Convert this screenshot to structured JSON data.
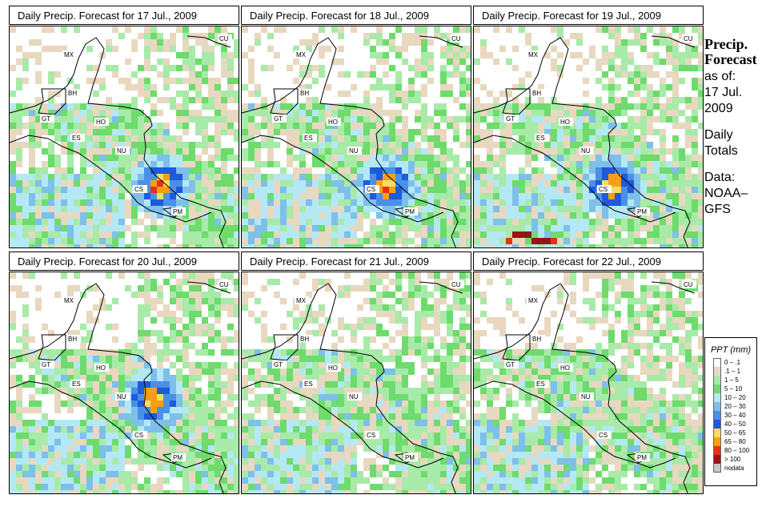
{
  "panels": [
    {
      "title": "Daily Precip. Forecast for  17 Jul., 2009"
    },
    {
      "title": "Daily Precip. Forecast for  18 Jul., 2009"
    },
    {
      "title": "Daily Precip. Forecast for  19 Jul., 2009"
    },
    {
      "title": "Daily Precip. Forecast for  20 Jul., 2009"
    },
    {
      "title": "Daily Precip. Forecast for  21 Jul., 2009"
    },
    {
      "title": "Daily Precip. Forecast for  22 Jul., 2009"
    }
  ],
  "country_labels": [
    "MX",
    "BH",
    "GT",
    "HO",
    "ES",
    "NU",
    "CS",
    "PM",
    "CU"
  ],
  "sidebar": {
    "title_line1": "Precip.",
    "title_line2": "Forecast",
    "asof_line1": "as of:",
    "asof_line2": "17 Jul.",
    "asof_line3": "2009",
    "daily_line1": "Daily",
    "daily_line2": "Totals",
    "data_line1": "Data:",
    "data_line2": "NOAA–",
    "data_line3": "GFS"
  },
  "legend": {
    "title": "PPT (mm)",
    "items": [
      {
        "label": "0 – .1",
        "color": "#ffffff"
      },
      {
        "label": ".1 – 1",
        "color": "#e8d8c0"
      },
      {
        "label": "1 – 5",
        "color": "#a8eaa8"
      },
      {
        "label": "5 – 10",
        "color": "#6ddc6d"
      },
      {
        "label": "10 – 20",
        "color": "#b4e8f4"
      },
      {
        "label": "20 – 30",
        "color": "#7ec0ea"
      },
      {
        "label": "30 – 40",
        "color": "#4a90e8"
      },
      {
        "label": "40 – 50",
        "color": "#1e5adc"
      },
      {
        "label": "50 – 65",
        "color": "#f5dc64"
      },
      {
        "label": "65 – 80",
        "color": "#f5a014"
      },
      {
        "label": "80 – 100",
        "color": "#e63214"
      },
      {
        "label": "> 100",
        "color": "#961414"
      },
      {
        "label": "nodata",
        "color": "#c8c8c8"
      }
    ]
  }
}
